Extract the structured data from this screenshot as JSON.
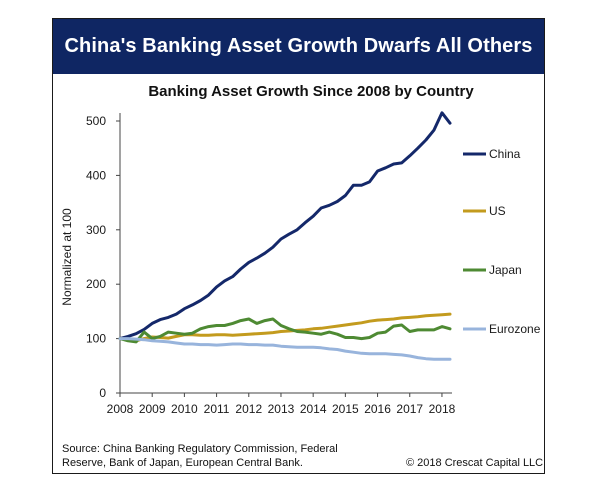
{
  "banner_title": "China's Banking Asset Growth Dwarfs All Others",
  "source_line1": "Source: China Banking Regulatory Commission, Federal",
  "source_line2": "Reserve, Bank of Japan, European Central Bank.",
  "copyright": "© 2018 Crescat Capital LLC",
  "colors": {
    "banner_bg": "#0f2663",
    "china": "#14286a",
    "us": "#c39b1e",
    "japan": "#4e8a33",
    "eurozone": "#98b4dc"
  },
  "chart_data": {
    "type": "line",
    "title": "Banking Asset Growth Since 2008 by Country",
    "xlabel": "",
    "ylabel": "Normalized at 100",
    "xlim": [
      2008,
      2018.25
    ],
    "ylim": [
      0,
      500
    ],
    "x_ticks": [
      2008,
      2009,
      2010,
      2011,
      2012,
      2013,
      2014,
      2015,
      2016,
      2017,
      2018
    ],
    "y_ticks": [
      0,
      100,
      200,
      300,
      400,
      500
    ],
    "grid": false,
    "legend_position": "right",
    "series": [
      {
        "name": "China",
        "color": "#14286a",
        "points": [
          [
            2008,
            100
          ],
          [
            2008.25,
            104
          ],
          [
            2008.5,
            109
          ],
          [
            2008.75,
            117
          ],
          [
            2009,
            128
          ],
          [
            2009.25,
            135
          ],
          [
            2009.5,
            139
          ],
          [
            2009.75,
            145
          ],
          [
            2010,
            155
          ],
          [
            2010.25,
            162
          ],
          [
            2010.5,
            170
          ],
          [
            2010.75,
            180
          ],
          [
            2011,
            195
          ],
          [
            2011.25,
            206
          ],
          [
            2011.5,
            214
          ],
          [
            2011.75,
            228
          ],
          [
            2012,
            240
          ],
          [
            2012.25,
            248
          ],
          [
            2012.5,
            257
          ],
          [
            2012.75,
            268
          ],
          [
            2013,
            283
          ],
          [
            2013.25,
            292
          ],
          [
            2013.5,
            300
          ],
          [
            2013.75,
            313
          ],
          [
            2014,
            325
          ],
          [
            2014.25,
            340
          ],
          [
            2014.5,
            345
          ],
          [
            2014.75,
            352
          ],
          [
            2015,
            363
          ],
          [
            2015.25,
            382
          ],
          [
            2015.5,
            382
          ],
          [
            2015.75,
            388
          ],
          [
            2016,
            408
          ],
          [
            2016.25,
            414
          ],
          [
            2016.5,
            421
          ],
          [
            2016.75,
            423
          ],
          [
            2017,
            436
          ],
          [
            2017.25,
            450
          ],
          [
            2017.5,
            465
          ],
          [
            2017.75,
            483
          ],
          [
            2018,
            515
          ],
          [
            2018.25,
            496
          ]
        ]
      },
      {
        "name": "US",
        "color": "#c39b1e",
        "points": [
          [
            2008,
            100
          ],
          [
            2008.25,
            98
          ],
          [
            2008.5,
            96
          ],
          [
            2008.75,
            100
          ],
          [
            2009,
            103
          ],
          [
            2009.25,
            102
          ],
          [
            2009.5,
            101
          ],
          [
            2009.75,
            104
          ],
          [
            2010,
            107
          ],
          [
            2010.25,
            107
          ],
          [
            2010.5,
            106
          ],
          [
            2010.75,
            106
          ],
          [
            2011,
            107
          ],
          [
            2011.25,
            107
          ],
          [
            2011.5,
            106
          ],
          [
            2011.75,
            107
          ],
          [
            2012,
            108
          ],
          [
            2012.25,
            109
          ],
          [
            2012.5,
            110
          ],
          [
            2012.75,
            111
          ],
          [
            2013,
            113
          ],
          [
            2013.25,
            114
          ],
          [
            2013.5,
            115
          ],
          [
            2013.75,
            116
          ],
          [
            2014,
            118
          ],
          [
            2014.25,
            119
          ],
          [
            2014.5,
            121
          ],
          [
            2014.75,
            123
          ],
          [
            2015,
            125
          ],
          [
            2015.25,
            127
          ],
          [
            2015.5,
            129
          ],
          [
            2015.75,
            132
          ],
          [
            2016,
            134
          ],
          [
            2016.25,
            135
          ],
          [
            2016.5,
            136
          ],
          [
            2016.75,
            138
          ],
          [
            2017,
            139
          ],
          [
            2017.25,
            140
          ],
          [
            2017.5,
            142
          ],
          [
            2017.75,
            143
          ],
          [
            2018,
            144
          ],
          [
            2018.25,
            145
          ]
        ]
      },
      {
        "name": "Japan",
        "color": "#4e8a33",
        "points": [
          [
            2008,
            100
          ],
          [
            2008.25,
            96
          ],
          [
            2008.5,
            94
          ],
          [
            2008.75,
            112
          ],
          [
            2009,
            100
          ],
          [
            2009.25,
            104
          ],
          [
            2009.5,
            112
          ],
          [
            2009.75,
            110
          ],
          [
            2010,
            108
          ],
          [
            2010.25,
            110
          ],
          [
            2010.5,
            118
          ],
          [
            2010.75,
            122
          ],
          [
            2011,
            124
          ],
          [
            2011.25,
            124
          ],
          [
            2011.5,
            128
          ],
          [
            2011.75,
            133
          ],
          [
            2012,
            136
          ],
          [
            2012.25,
            128
          ],
          [
            2012.5,
            133
          ],
          [
            2012.75,
            136
          ],
          [
            2013,
            124
          ],
          [
            2013.25,
            118
          ],
          [
            2013.5,
            113
          ],
          [
            2013.75,
            112
          ],
          [
            2014,
            110
          ],
          [
            2014.25,
            108
          ],
          [
            2014.5,
            112
          ],
          [
            2014.75,
            108
          ],
          [
            2015,
            102
          ],
          [
            2015.25,
            102
          ],
          [
            2015.5,
            100
          ],
          [
            2015.75,
            102
          ],
          [
            2016,
            110
          ],
          [
            2016.25,
            112
          ],
          [
            2016.5,
            123
          ],
          [
            2016.75,
            125
          ],
          [
            2017,
            113
          ],
          [
            2017.25,
            116
          ],
          [
            2017.5,
            116
          ],
          [
            2017.75,
            116
          ],
          [
            2018,
            122
          ],
          [
            2018.25,
            118
          ]
        ]
      },
      {
        "name": "Eurozone",
        "color": "#98b4dc",
        "points": [
          [
            2008,
            100
          ],
          [
            2008.25,
            100
          ],
          [
            2008.5,
            99
          ],
          [
            2008.75,
            98
          ],
          [
            2009,
            96
          ],
          [
            2009.25,
            95
          ],
          [
            2009.5,
            94
          ],
          [
            2009.75,
            92
          ],
          [
            2010,
            90
          ],
          [
            2010.25,
            90
          ],
          [
            2010.5,
            89
          ],
          [
            2010.75,
            89
          ],
          [
            2011,
            88
          ],
          [
            2011.25,
            89
          ],
          [
            2011.5,
            90
          ],
          [
            2011.75,
            90
          ],
          [
            2012,
            89
          ],
          [
            2012.25,
            89
          ],
          [
            2012.5,
            88
          ],
          [
            2012.75,
            88
          ],
          [
            2013,
            86
          ],
          [
            2013.25,
            85
          ],
          [
            2013.5,
            84
          ],
          [
            2013.75,
            84
          ],
          [
            2014,
            84
          ],
          [
            2014.25,
            83
          ],
          [
            2014.5,
            81
          ],
          [
            2014.75,
            80
          ],
          [
            2015,
            77
          ],
          [
            2015.25,
            75
          ],
          [
            2015.5,
            73
          ],
          [
            2015.75,
            72
          ],
          [
            2016,
            72
          ],
          [
            2016.25,
            72
          ],
          [
            2016.5,
            71
          ],
          [
            2016.75,
            70
          ],
          [
            2017,
            68
          ],
          [
            2017.25,
            65
          ],
          [
            2017.5,
            63
          ],
          [
            2017.75,
            62
          ],
          [
            2018,
            62
          ],
          [
            2018.25,
            62
          ]
        ]
      }
    ]
  }
}
